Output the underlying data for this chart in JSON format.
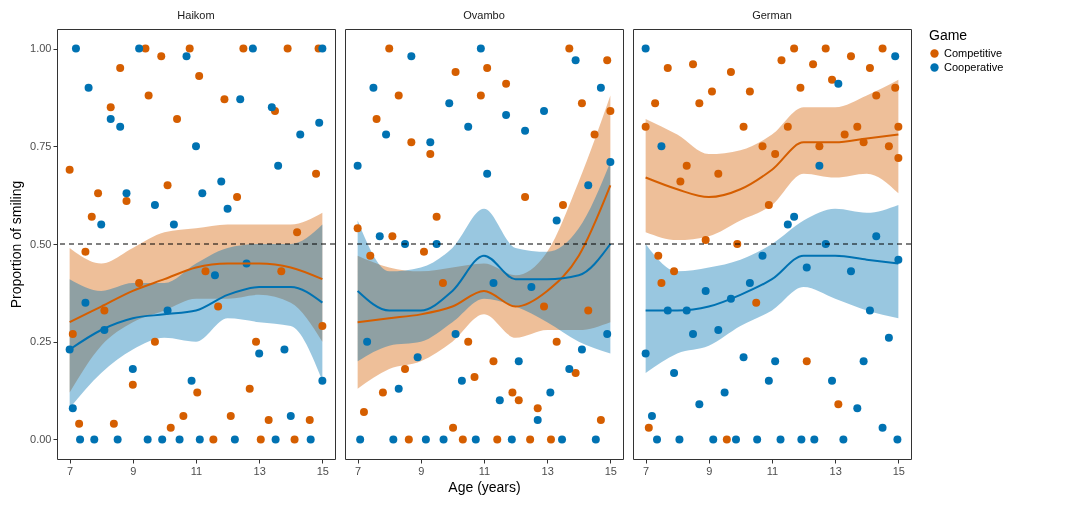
{
  "chart_data": [
    {
      "type": "scatter",
      "title": "Haikom",
      "ylabel": "Proportion of smiling",
      "xlim": [
        6.6,
        15.4
      ],
      "ylim": [
        -0.05,
        1.05
      ],
      "xticks": [
        7,
        9,
        11,
        13,
        15
      ],
      "yticks": [
        {
          "value": 0,
          "label": "0.00"
        },
        {
          "value": 0.25,
          "label": "0.25"
        },
        {
          "value": 0.5,
          "label": "0.50"
        },
        {
          "value": 0.75,
          "label": "0.75"
        },
        {
          "value": 1,
          "label": "1.00"
        }
      ],
      "marker": "circle",
      "ref_lines": [
        {
          "axis": "y",
          "value": 0.5,
          "line_style": "dashed"
        }
      ],
      "series": [
        {
          "color": "#d55e00",
          "x": [
            7.0,
            7.1,
            7.3,
            7.5,
            7.7,
            7.9,
            8.1,
            8.3,
            8.4,
            8.6,
            8.8,
            9.0,
            9.2,
            9.4,
            9.5,
            9.7,
            9.9,
            10.1,
            10.2,
            10.4,
            10.6,
            10.8,
            11.04,
            11.1,
            11.3,
            11.55,
            11.7,
            11.9,
            12.1,
            12.3,
            12.5,
            12.7,
            12.9,
            13.05,
            13.3,
            13.5,
            13.7,
            13.9,
            14.2,
            14.12,
            14.6,
            14.8,
            15.0,
            14.88
          ],
          "values": [
            0.69,
            0.27,
            0.04,
            0.48,
            0.57,
            0.63,
            0.33,
            0.85,
            0.04,
            0.95,
            0.61,
            0.14,
            0.4,
            1.0,
            0.88,
            0.25,
            0.98,
            0.65,
            0.03,
            0.82,
            0.06,
            1.0,
            0.12,
            0.93,
            0.43,
            0.0,
            0.34,
            0.87,
            0.06,
            0.62,
            1.0,
            0.13,
            0.25,
            0.0,
            0.05,
            0.84,
            0.43,
            1.0,
            0.53,
            0.0,
            0.05,
            0.68,
            0.29,
            1.0
          ]
        },
        {
          "color": "#0072b2",
          "x": [
            7.0,
            7.1,
            7.2,
            7.33,
            7.5,
            7.6,
            7.78,
            8.0,
            8.1,
            8.3,
            8.52,
            8.6,
            8.8,
            9.0,
            9.2,
            9.47,
            9.7,
            9.93,
            10.1,
            10.3,
            10.48,
            10.7,
            10.86,
            11.0,
            11.2,
            11.12,
            11.6,
            11.8,
            12.0,
            12.23,
            12.4,
            12.6,
            12.8,
            13.0,
            13.52,
            13.4,
            13.6,
            13.8,
            14.0,
            14.3,
            14.63,
            14.9,
            15.0,
            15.0
          ],
          "values": [
            0.23,
            0.08,
            1.0,
            0.0,
            0.35,
            0.9,
            0.0,
            0.55,
            0.28,
            0.82,
            0.0,
            0.8,
            0.63,
            0.18,
            1.0,
            0.0,
            0.6,
            0.0,
            0.33,
            0.55,
            0.0,
            0.98,
            0.15,
            0.75,
            0.63,
            0.0,
            0.42,
            0.66,
            0.59,
            0.0,
            0.87,
            0.45,
            1.0,
            0.22,
            0.0,
            0.85,
            0.7,
            0.23,
            0.06,
            0.78,
            0.0,
            0.81,
            0.15,
            1.0
          ]
        },
        {
          "type": "line",
          "marker": "none",
          "color": "#d55e00",
          "x": [
            7,
            8,
            9,
            10,
            11,
            12,
            13,
            14,
            15
          ],
          "values": [
            0.3,
            0.34,
            0.38,
            0.41,
            0.44,
            0.45,
            0.45,
            0.44,
            0.41
          ],
          "lower": [
            0.12,
            0.24,
            0.3,
            0.33,
            0.36,
            0.36,
            0.37,
            0.35,
            0.25
          ],
          "upper": [
            0.49,
            0.45,
            0.49,
            0.53,
            0.54,
            0.55,
            0.55,
            0.55,
            0.58
          ]
        },
        {
          "type": "line",
          "marker": "none",
          "color": "#0072b2",
          "x": [
            7,
            8,
            9,
            10,
            11,
            12,
            13,
            14,
            15
          ],
          "values": [
            0.23,
            0.28,
            0.31,
            0.32,
            0.33,
            0.37,
            0.39,
            0.39,
            0.35
          ],
          "lower": [
            0.08,
            0.17,
            0.23,
            0.26,
            0.25,
            0.31,
            0.3,
            0.29,
            0.15
          ],
          "upper": [
            0.41,
            0.38,
            0.4,
            0.4,
            0.45,
            0.49,
            0.5,
            0.5,
            0.55
          ]
        }
      ]
    },
    {
      "type": "scatter",
      "title": "Ovambo",
      "xlabel": "Age (years)",
      "xlim": [
        6.6,
        15.4
      ],
      "ylim": [
        -0.05,
        1.05
      ],
      "xticks": [
        7,
        9,
        11,
        13,
        15
      ],
      "tick_labels": "x",
      "marker": "circle",
      "ref_lines": [
        {
          "axis": "y",
          "value": 0.5,
          "line_style": "dashed"
        }
      ],
      "series": [
        {
          "color": "#d55e00",
          "x": [
            7.0,
            7.2,
            7.4,
            7.6,
            7.8,
            8.0,
            8.1,
            8.3,
            8.5,
            8.7,
            8.62,
            9.1,
            9.3,
            9.5,
            9.7,
            10.02,
            10.1,
            10.33,
            10.5,
            10.7,
            10.9,
            11.1,
            11.3,
            11.42,
            11.7,
            11.9,
            12.1,
            12.3,
            12.46,
            12.7,
            12.9,
            13.12,
            13.3,
            13.5,
            13.7,
            13.9,
            14.1,
            14.3,
            14.5,
            14.7,
            14.9,
            15.0
          ],
          "values": [
            0.54,
            0.07,
            0.47,
            0.82,
            0.12,
            1.0,
            0.52,
            0.88,
            0.18,
            0.76,
            0.0,
            0.48,
            0.73,
            0.57,
            0.4,
            0.03,
            0.94,
            0.0,
            0.25,
            0.16,
            0.88,
            0.95,
            0.2,
            0.0,
            0.91,
            0.12,
            0.1,
            0.62,
            0.0,
            0.08,
            0.34,
            0.0,
            0.25,
            0.6,
            1.0,
            0.17,
            0.86,
            0.33,
            0.78,
            0.05,
            0.97,
            0.84
          ]
        },
        {
          "color": "#0072b2",
          "x": [
            7.0,
            7.08,
            7.3,
            7.5,
            7.7,
            7.9,
            8.13,
            8.3,
            8.5,
            8.7,
            8.9,
            9.16,
            9.3,
            9.5,
            9.72,
            9.9,
            10.1,
            10.3,
            10.5,
            10.74,
            10.9,
            11.1,
            11.3,
            11.5,
            11.7,
            11.88,
            12.1,
            12.3,
            12.5,
            12.7,
            12.9,
            13.1,
            13.3,
            13.47,
            13.7,
            13.9,
            14.1,
            14.3,
            14.54,
            14.7,
            14.9,
            15.0
          ],
          "values": [
            0.7,
            0.0,
            0.25,
            0.9,
            0.52,
            0.78,
            0.0,
            0.13,
            0.5,
            0.98,
            0.21,
            0.0,
            0.76,
            0.5,
            0.0,
            0.86,
            0.27,
            0.15,
            0.8,
            0.0,
            1.0,
            0.68,
            0.4,
            0.1,
            0.83,
            0.0,
            0.2,
            0.79,
            0.39,
            0.05,
            0.84,
            0.12,
            0.56,
            0.0,
            0.18,
            0.97,
            0.23,
            0.65,
            0.0,
            0.9,
            0.27,
            0.71
          ]
        },
        {
          "type": "line",
          "marker": "none",
          "color": "#d55e00",
          "x": [
            7,
            8,
            9,
            10,
            11,
            12,
            13,
            14,
            15
          ],
          "values": [
            0.3,
            0.31,
            0.32,
            0.34,
            0.38,
            0.34,
            0.38,
            0.47,
            0.65
          ],
          "lower": [
            0.13,
            0.18,
            0.2,
            0.25,
            0.32,
            0.26,
            0.28,
            0.28,
            0.3
          ],
          "upper": [
            0.47,
            0.44,
            0.43,
            0.44,
            0.45,
            0.42,
            0.48,
            0.66,
            0.88
          ]
        },
        {
          "type": "line",
          "marker": "none",
          "color": "#0072b2",
          "x": [
            7,
            8,
            9,
            10,
            11,
            12,
            13,
            14,
            15
          ],
          "values": [
            0.38,
            0.33,
            0.33,
            0.38,
            0.47,
            0.41,
            0.41,
            0.42,
            0.5
          ],
          "lower": [
            0.2,
            0.24,
            0.25,
            0.3,
            0.36,
            0.34,
            0.3,
            0.25,
            0.22
          ],
          "upper": [
            0.56,
            0.43,
            0.44,
            0.49,
            0.59,
            0.49,
            0.48,
            0.54,
            0.71
          ]
        }
      ]
    },
    {
      "type": "scatter",
      "title": "German",
      "legend_title": "Game",
      "legend": "right",
      "xlim": [
        6.6,
        15.4
      ],
      "ylim": [
        -0.05,
        1.05
      ],
      "xticks": [
        7,
        9,
        11,
        13,
        15
      ],
      "tick_labels": "x",
      "marker": "circle",
      "ref_lines": [
        {
          "axis": "y",
          "value": 0.5,
          "line_style": "dashed"
        }
      ],
      "series": [
        {
          "name": "Competitive",
          "color": "#d55e00",
          "x": [
            7.0,
            7.1,
            7.3,
            7.4,
            7.5,
            7.7,
            7.9,
            8.1,
            8.3,
            8.5,
            8.7,
            8.9,
            9.1,
            9.3,
            9.57,
            9.7,
            9.9,
            10.1,
            10.3,
            10.5,
            10.7,
            10.9,
            11.1,
            11.3,
            11.5,
            11.7,
            11.9,
            12.1,
            12.3,
            12.5,
            12.7,
            12.9,
            13.1,
            13.3,
            13.5,
            13.7,
            13.9,
            14.1,
            14.3,
            14.5,
            14.7,
            14.9,
            15.0,
            15.0
          ],
          "values": [
            0.8,
            0.03,
            0.86,
            0.47,
            0.4,
            0.95,
            0.43,
            0.66,
            0.7,
            0.96,
            0.86,
            0.51,
            0.89,
            0.68,
            0.0,
            0.94,
            0.5,
            0.8,
            0.89,
            0.35,
            0.75,
            0.6,
            0.73,
            0.97,
            0.8,
            1.0,
            0.9,
            0.2,
            0.96,
            0.75,
            1.0,
            0.92,
            0.09,
            0.78,
            0.98,
            0.8,
            0.76,
            0.95,
            0.88,
            1.0,
            0.75,
            0.9,
            0.8,
            0.72
          ]
        },
        {
          "name": "Cooperative",
          "color": "#0072b2",
          "x": [
            7.0,
            7.0,
            7.2,
            7.36,
            7.5,
            7.7,
            7.9,
            8.07,
            8.3,
            8.5,
            8.7,
            8.9,
            9.14,
            9.3,
            9.5,
            9.7,
            9.86,
            10.1,
            10.3,
            10.53,
            10.7,
            10.9,
            11.1,
            11.27,
            11.5,
            11.7,
            11.93,
            12.1,
            12.34,
            12.5,
            12.7,
            12.9,
            13.1,
            13.26,
            13.5,
            13.7,
            13.9,
            14.1,
            14.3,
            14.5,
            14.7,
            14.9,
            15.0,
            14.97
          ],
          "values": [
            1.0,
            0.22,
            0.06,
            0.0,
            0.75,
            0.33,
            0.17,
            0.0,
            0.33,
            0.27,
            0.09,
            0.38,
            0.0,
            0.28,
            0.12,
            0.36,
            0.0,
            0.21,
            0.4,
            0.0,
            0.47,
            0.15,
            0.2,
            0.0,
            0.55,
            0.57,
            0.0,
            0.44,
            0.0,
            0.7,
            0.5,
            0.15,
            0.91,
            0.0,
            0.43,
            0.08,
            0.2,
            0.33,
            0.52,
            0.03,
            0.26,
            0.98,
            0.46,
            0.0
          ]
        },
        {
          "type": "line",
          "marker": "none",
          "color": "#d55e00",
          "x": [
            7,
            8,
            9,
            10,
            11,
            12,
            13,
            14,
            15
          ],
          "values": [
            0.67,
            0.64,
            0.62,
            0.64,
            0.69,
            0.76,
            0.76,
            0.77,
            0.78
          ],
          "lower": [
            0.53,
            0.51,
            0.52,
            0.56,
            0.6,
            0.68,
            0.67,
            0.68,
            0.63
          ],
          "upper": [
            0.82,
            0.78,
            0.73,
            0.74,
            0.78,
            0.85,
            0.85,
            0.88,
            0.92
          ]
        },
        {
          "type": "line",
          "marker": "none",
          "color": "#0072b2",
          "x": [
            7,
            8,
            9,
            10,
            11,
            12,
            13,
            14,
            15
          ],
          "values": [
            0.33,
            0.33,
            0.34,
            0.37,
            0.41,
            0.47,
            0.47,
            0.46,
            0.45
          ],
          "lower": [
            0.17,
            0.22,
            0.24,
            0.29,
            0.33,
            0.39,
            0.36,
            0.33,
            0.31
          ],
          "upper": [
            0.5,
            0.43,
            0.44,
            0.46,
            0.5,
            0.56,
            0.59,
            0.58,
            0.6
          ]
        }
      ]
    }
  ]
}
